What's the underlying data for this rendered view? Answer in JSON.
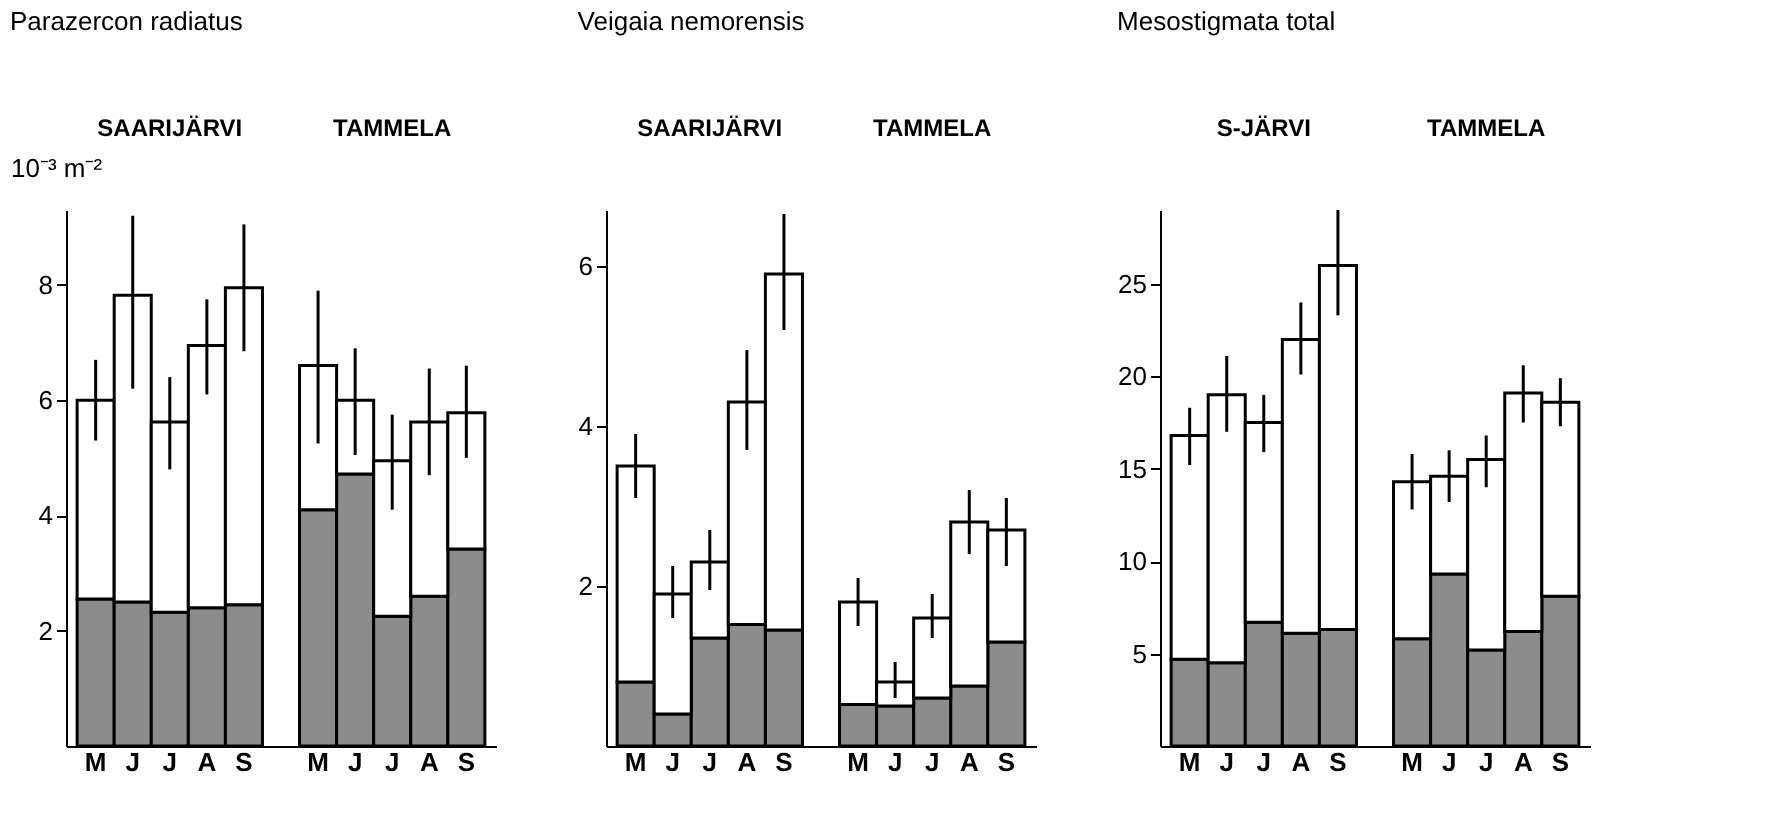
{
  "chart_data": [
    {
      "type": "bar",
      "title": "Parazercon radiatus",
      "ylabel": "10⁻³ m⁻²",
      "stacked": true,
      "grid": false,
      "annotations": [
        "SAARIJÄRVI",
        "TAMMELA"
      ],
      "categories": [
        "M",
        "J",
        "J",
        "A",
        "S",
        null,
        "M",
        "J",
        "J",
        "A",
        "S"
      ],
      "ylim": [
        0,
        9.3
      ],
      "yticks": [
        2,
        4,
        6,
        8
      ],
      "series": [
        {
          "color": "#8c8c8c",
          "values": [
            2.55,
            2.5,
            2.32,
            2.4,
            2.45,
            null,
            4.1,
            4.72,
            2.25,
            2.6,
            3.42
          ]
        },
        {
          "color": "#ffffff",
          "values": [
            3.45,
            5.32,
            3.3,
            4.55,
            5.5,
            null,
            2.5,
            1.28,
            2.7,
            3.02,
            2.36
          ],
          "errors": [
            [
              5.3,
              6.7
            ],
            [
              6.2,
              9.2
            ],
            [
              4.8,
              6.4
            ],
            [
              6.1,
              7.75
            ],
            [
              6.85,
              9.05
            ],
            null,
            [
              5.25,
              7.9
            ],
            [
              5.05,
              6.9
            ],
            [
              4.1,
              5.75
            ],
            [
              4.7,
              6.55
            ],
            [
              5.0,
              6.6
            ]
          ]
        }
      ]
    },
    {
      "type": "bar",
      "title": "Veigaia nemorensis",
      "stacked": true,
      "grid": false,
      "annotations": [
        "SAARIJÄRVI",
        "TAMMELA"
      ],
      "categories": [
        "M",
        "J",
        "J",
        "A",
        "S",
        null,
        "M",
        "J",
        "J",
        "A",
        "S"
      ],
      "ylim": [
        0,
        6.7
      ],
      "yticks": [
        2,
        4,
        6
      ],
      "series": [
        {
          "color": "#8c8c8c",
          "values": [
            0.8,
            0.4,
            1.35,
            1.52,
            1.45,
            null,
            0.52,
            0.5,
            0.6,
            0.75,
            1.3
          ]
        },
        {
          "color": "#ffffff",
          "values": [
            2.7,
            1.5,
            0.95,
            2.78,
            4.45,
            null,
            1.28,
            0.3,
            1.0,
            2.05,
            1.4
          ],
          "errors": [
            [
              3.1,
              3.9
            ],
            [
              1.6,
              2.25
            ],
            [
              1.95,
              2.7
            ],
            [
              3.7,
              4.95
            ],
            [
              5.2,
              6.65
            ],
            null,
            [
              1.5,
              2.1
            ],
            [
              0.6,
              1.05
            ],
            [
              1.35,
              1.9
            ],
            [
              2.4,
              3.2
            ],
            [
              2.25,
              3.1
            ]
          ]
        }
      ]
    },
    {
      "type": "bar",
      "title": "Mesostigmata total",
      "stacked": true,
      "grid": false,
      "annotations": [
        "S-JÄRVI",
        "TAMMELA"
      ],
      "categories": [
        "M",
        "J",
        "J",
        "A",
        "S",
        null,
        "M",
        "J",
        "J",
        "A",
        "S"
      ],
      "ylim": [
        0,
        29
      ],
      "yticks": [
        5,
        10,
        15,
        20,
        25
      ],
      "series": [
        {
          "color": "#8c8c8c",
          "values": [
            4.7,
            4.5,
            6.7,
            6.1,
            6.3,
            null,
            5.8,
            9.3,
            5.2,
            6.2,
            8.1
          ]
        },
        {
          "color": "#ffffff",
          "values": [
            12.1,
            14.5,
            10.8,
            15.9,
            19.7,
            null,
            8.5,
            5.3,
            10.3,
            12.9,
            10.5
          ],
          "errors": [
            [
              15.2,
              18.3
            ],
            [
              17.0,
              21.1
            ],
            [
              15.9,
              19.0
            ],
            [
              20.1,
              24.0
            ],
            [
              23.3,
              29.0
            ],
            null,
            [
              12.8,
              15.8
            ],
            [
              13.2,
              16.0
            ],
            [
              14.0,
              16.8
            ],
            [
              17.5,
              20.6
            ],
            [
              17.3,
              19.9
            ]
          ]
        }
      ]
    }
  ]
}
